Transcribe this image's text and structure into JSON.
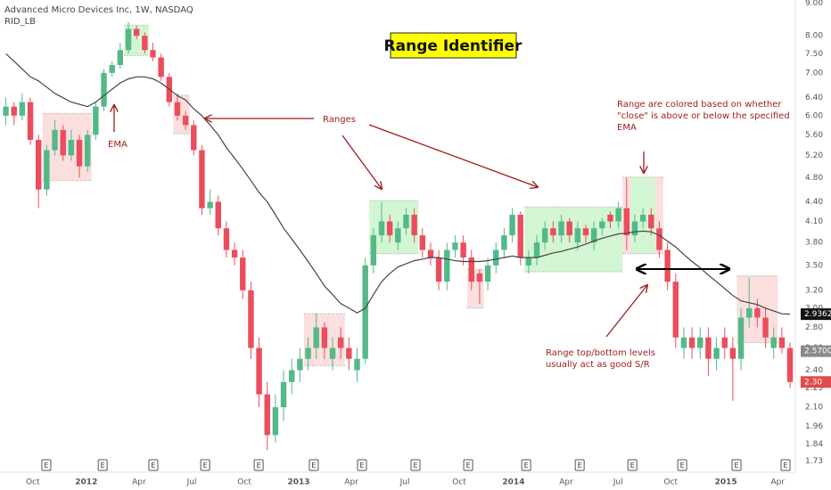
{
  "chart_data": {
    "type": "candlestick",
    "header": "Advanced Micro Devices Inc, 1W, NASDAQ",
    "indicator": "RID_LB",
    "title": "Range Identifier",
    "log_scale": true,
    "grid": false,
    "up_color": "#53b987",
    "down_color": "#eb4d5c",
    "ema_color": "#444444",
    "range_up_color": "#d2f5d2",
    "range_down_color": "#fbdede",
    "xlim": [
      0,
      194.3
    ],
    "ylim": [
      1.7,
      9.1
    ],
    "yticks": [
      {
        "value": 9.0,
        "label": "9.00"
      },
      {
        "value": 8.0,
        "label": "8.00"
      },
      {
        "value": 7.5,
        "label": "7.50"
      },
      {
        "value": 7.0,
        "label": "7.00"
      },
      {
        "value": 6.4,
        "label": "6.40"
      },
      {
        "value": 6.0,
        "label": "6.00"
      },
      {
        "value": 5.6,
        "label": "5.60"
      },
      {
        "value": 5.2,
        "label": "5.20"
      },
      {
        "value": 4.8,
        "label": "4.80"
      },
      {
        "value": 4.4,
        "label": "4.40"
      },
      {
        "value": 4.1,
        "label": "4.10"
      },
      {
        "value": 3.8,
        "label": "3.80"
      },
      {
        "value": 3.5,
        "label": "3.50"
      },
      {
        "value": 3.2,
        "label": "3.20"
      },
      {
        "value": 3.0,
        "label": "3.00"
      },
      {
        "value": 2.8,
        "label": "2.80"
      },
      {
        "value": 2.6,
        "label": "2.60"
      },
      {
        "value": 2.4,
        "label": "2.40"
      },
      {
        "value": 2.25,
        "label": "2.25"
      },
      {
        "value": 2.1,
        "label": "2.10"
      },
      {
        "value": 1.96,
        "label": "1.96"
      },
      {
        "value": 1.84,
        "label": "1.84"
      },
      {
        "value": 1.73,
        "label": "1.73"
      }
    ],
    "xticks": [
      {
        "value": 7.6,
        "label": "Oct"
      },
      {
        "value": 20.7,
        "label": "2012"
      },
      {
        "value": 33.6,
        "label": "Apr"
      },
      {
        "value": 46.5,
        "label": "Jul"
      },
      {
        "value": 59.4,
        "label": "Oct"
      },
      {
        "value": 72.7,
        "label": "2013"
      },
      {
        "value": 85.6,
        "label": "Apr"
      },
      {
        "value": 98.7,
        "label": "Jul"
      },
      {
        "value": 112.0,
        "label": "Oct"
      },
      {
        "value": 125.3,
        "label": "2014"
      },
      {
        "value": 138.2,
        "label": "Apr"
      },
      {
        "value": 150.9,
        "label": "Jul"
      },
      {
        "value": 163.8,
        "label": "Oct"
      },
      {
        "value": 177.3,
        "label": "2015"
      },
      {
        "value": 190.0,
        "label": "Apr"
      }
    ],
    "x": [
      1,
      3,
      5,
      7,
      9,
      11,
      13,
      15,
      17,
      19,
      21,
      23,
      25,
      27,
      29,
      31,
      33,
      35,
      37,
      39,
      41,
      43,
      45,
      47,
      49,
      51,
      53,
      55,
      57,
      59,
      61,
      63,
      65,
      67,
      69,
      71,
      73,
      75,
      77,
      79,
      81,
      83,
      85,
      87,
      89,
      91,
      93,
      95,
      97,
      99,
      101,
      103,
      105,
      107,
      109,
      111,
      113,
      115,
      117,
      119,
      121,
      123,
      125,
      127,
      129,
      131,
      133,
      135,
      137,
      139,
      141,
      143,
      145,
      147,
      149,
      151,
      153,
      155,
      157,
      159,
      161,
      163,
      165,
      167,
      169,
      171,
      173,
      175,
      177,
      179,
      181,
      183,
      185,
      187,
      189,
      191,
      193
    ],
    "open": [
      6.0,
      6.2,
      6.0,
      6.3,
      5.5,
      4.6,
      5.3,
      5.7,
      5.2,
      5.5,
      5.0,
      5.6,
      6.2,
      7.0,
      7.2,
      7.6,
      8.2,
      8.0,
      7.6,
      7.4,
      6.9,
      6.3,
      6.0,
      5.8,
      5.3,
      4.3,
      4.4,
      4.0,
      3.7,
      3.6,
      3.2,
      2.6,
      2.2,
      1.9,
      2.1,
      2.3,
      2.4,
      2.5,
      2.6,
      2.8,
      2.5,
      2.7,
      2.6,
      2.4,
      2.5,
      3.5,
      3.9,
      4.1,
      3.8,
      4.0,
      4.2,
      3.9,
      3.7,
      3.6,
      3.3,
      3.7,
      3.8,
      3.6,
      3.4,
      3.3,
      3.5,
      3.7,
      3.9,
      4.2,
      3.5,
      3.6,
      3.8,
      4.0,
      3.9,
      4.1,
      3.8,
      4.0,
      3.8,
      4.0,
      4.2,
      4.1,
      4.3,
      3.9,
      4.1,
      4.2,
      4.0,
      3.7,
      3.3,
      2.6,
      2.7,
      2.6,
      2.7,
      2.5,
      2.7,
      2.6,
      2.5,
      2.9,
      3.0,
      2.9,
      2.6,
      2.7,
      2.6
    ],
    "high": [
      6.4,
      6.3,
      6.5,
      6.4,
      5.6,
      5.4,
      5.9,
      5.8,
      5.7,
      5.6,
      5.7,
      6.3,
      7.1,
      7.3,
      7.8,
      8.4,
      8.3,
      8.1,
      7.8,
      7.5,
      7.0,
      6.5,
      6.1,
      5.9,
      5.4,
      4.6,
      4.5,
      4.1,
      3.8,
      3.7,
      3.3,
      2.7,
      2.3,
      2.2,
      2.4,
      2.5,
      2.6,
      2.7,
      2.95,
      2.85,
      2.7,
      2.8,
      2.7,
      2.6,
      3.6,
      4.0,
      4.4,
      4.2,
      4.1,
      4.3,
      4.3,
      4.0,
      3.8,
      3.7,
      3.8,
      3.9,
      3.9,
      3.7,
      3.45,
      3.6,
      3.8,
      4.0,
      4.3,
      4.25,
      3.7,
      3.9,
      4.1,
      4.1,
      4.2,
      4.15,
      4.1,
      4.05,
      4.1,
      4.15,
      4.25,
      4.4,
      4.8,
      4.2,
      4.3,
      4.3,
      4.1,
      3.8,
      3.4,
      2.8,
      2.8,
      2.8,
      2.8,
      2.7,
      2.8,
      2.7,
      3.0,
      3.35,
      3.1,
      3.0,
      2.8,
      2.8,
      2.65
    ],
    "low": [
      5.8,
      5.8,
      5.9,
      5.4,
      4.3,
      4.5,
      5.2,
      5.1,
      5.1,
      4.8,
      4.9,
      5.5,
      6.1,
      6.9,
      7.1,
      7.5,
      7.9,
      7.5,
      7.3,
      6.8,
      6.2,
      5.9,
      5.7,
      5.2,
      4.2,
      4.2,
      3.9,
      3.6,
      3.5,
      3.1,
      2.5,
      2.1,
      1.8,
      1.85,
      2.0,
      2.2,
      2.3,
      2.4,
      2.5,
      2.5,
      2.4,
      2.5,
      2.4,
      2.3,
      2.45,
      3.4,
      3.8,
      3.8,
      3.7,
      3.9,
      3.8,
      3.6,
      3.5,
      3.2,
      3.2,
      3.6,
      3.5,
      3.2,
      3.05,
      3.2,
      3.4,
      3.6,
      3.8,
      3.5,
      3.4,
      3.5,
      3.7,
      3.8,
      3.8,
      3.8,
      3.7,
      3.8,
      3.7,
      3.9,
      4.0,
      4.0,
      3.7,
      3.8,
      4.0,
      3.9,
      3.6,
      3.2,
      2.6,
      2.5,
      2.5,
      2.5,
      2.35,
      2.4,
      2.5,
      2.15,
      2.4,
      2.8,
      2.8,
      2.6,
      2.5,
      2.55,
      2.25
    ],
    "close": [
      6.2,
      6.0,
      6.3,
      5.5,
      4.6,
      5.3,
      5.7,
      5.2,
      5.5,
      5.0,
      5.6,
      6.2,
      7.0,
      7.2,
      7.6,
      8.2,
      8.0,
      7.6,
      7.4,
      6.9,
      6.3,
      6.0,
      5.8,
      5.3,
      4.3,
      4.4,
      4.0,
      3.7,
      3.6,
      3.2,
      2.6,
      2.2,
      1.9,
      2.1,
      2.3,
      2.4,
      2.5,
      2.6,
      2.8,
      2.6,
      2.6,
      2.6,
      2.5,
      2.5,
      3.5,
      3.9,
      4.1,
      3.9,
      4.0,
      4.2,
      3.9,
      3.7,
      3.6,
      3.3,
      3.7,
      3.8,
      3.6,
      3.3,
      3.3,
      3.5,
      3.7,
      3.9,
      4.2,
      3.6,
      3.6,
      3.8,
      4.0,
      3.9,
      4.1,
      3.9,
      4.0,
      3.9,
      4.0,
      4.1,
      4.1,
      4.3,
      3.9,
      4.1,
      4.2,
      4.0,
      3.7,
      3.3,
      2.7,
      2.7,
      2.6,
      2.7,
      2.5,
      2.6,
      2.6,
      2.5,
      2.9,
      3.0,
      2.9,
      2.7,
      2.7,
      2.6,
      2.3
    ],
    "ema": [
      7.5,
      7.3,
      7.1,
      6.9,
      6.8,
      6.65,
      6.5,
      6.4,
      6.3,
      6.25,
      6.2,
      6.3,
      6.45,
      6.6,
      6.75,
      6.85,
      6.9,
      6.9,
      6.85,
      6.75,
      6.6,
      6.45,
      6.35,
      6.15,
      6.0,
      5.8,
      5.6,
      5.35,
      5.15,
      4.95,
      4.75,
      4.55,
      4.4,
      4.2,
      4.0,
      3.85,
      3.7,
      3.55,
      3.4,
      3.25,
      3.15,
      3.05,
      3.0,
      2.95,
      3.0,
      3.15,
      3.3,
      3.4,
      3.48,
      3.52,
      3.56,
      3.58,
      3.6,
      3.6,
      3.58,
      3.56,
      3.55,
      3.55,
      3.55,
      3.56,
      3.58,
      3.6,
      3.62,
      3.6,
      3.6,
      3.6,
      3.63,
      3.66,
      3.68,
      3.71,
      3.74,
      3.78,
      3.82,
      3.86,
      3.89,
      3.92,
      3.93,
      3.95,
      3.96,
      3.95,
      3.9,
      3.82,
      3.74,
      3.64,
      3.55,
      3.47,
      3.38,
      3.3,
      3.22,
      3.14,
      3.08,
      3.06,
      3.04,
      3.0,
      2.97,
      2.94,
      2.9362
    ],
    "ranges": [
      {
        "x": [
          10,
          22
        ],
        "top": 6.05,
        "bottom": 4.75
      },
      {
        "x": [
          30,
          36
        ],
        "top": 8.31,
        "bottom": 7.45
      },
      {
        "x": [
          42,
          46
        ],
        "top": 6.46,
        "bottom": 5.62
      },
      {
        "x": [
          74,
          84
        ],
        "top": 2.94,
        "bottom": 2.44
      },
      {
        "x": [
          90,
          102
        ],
        "top": 4.42,
        "bottom": 3.65
      },
      {
        "x": [
          114,
          118
        ],
        "top": 3.45,
        "bottom": 3.0
      },
      {
        "x": [
          128,
          152
        ],
        "top": 4.32,
        "bottom": 3.42
      },
      {
        "x": [
          152,
          162
        ],
        "top": 4.81,
        "bottom": 3.65
      },
      {
        "x": [
          180,
          190
        ],
        "top": 3.37,
        "bottom": 2.65
      }
    ],
    "price_labels": [
      {
        "value": 2.9362,
        "label": "2.9362",
        "color": "#111111"
      },
      {
        "value": 2.57,
        "label": "2.5700",
        "color": "#8a8a8a"
      },
      {
        "value": 2.3,
        "label": "2.30",
        "color": "#e04b4b"
      }
    ],
    "earnings": {
      "label": "E",
      "x": [
        10.9,
        24.7,
        37.1,
        49.8,
        62.9,
        76.4,
        88.2,
        101.3,
        114.2,
        128.4,
        141.5,
        154.4,
        166.6,
        179.9,
        191.9
      ]
    },
    "annotations": {
      "ema": "EMA",
      "ranges": "Ranges",
      "coloring": [
        "Range are colored based on whether",
        "\"close\" is above or below the specified",
        "EMA"
      ],
      "levels": [
        "Range top/bottom levels",
        "usually act as good S/R"
      ]
    }
  }
}
